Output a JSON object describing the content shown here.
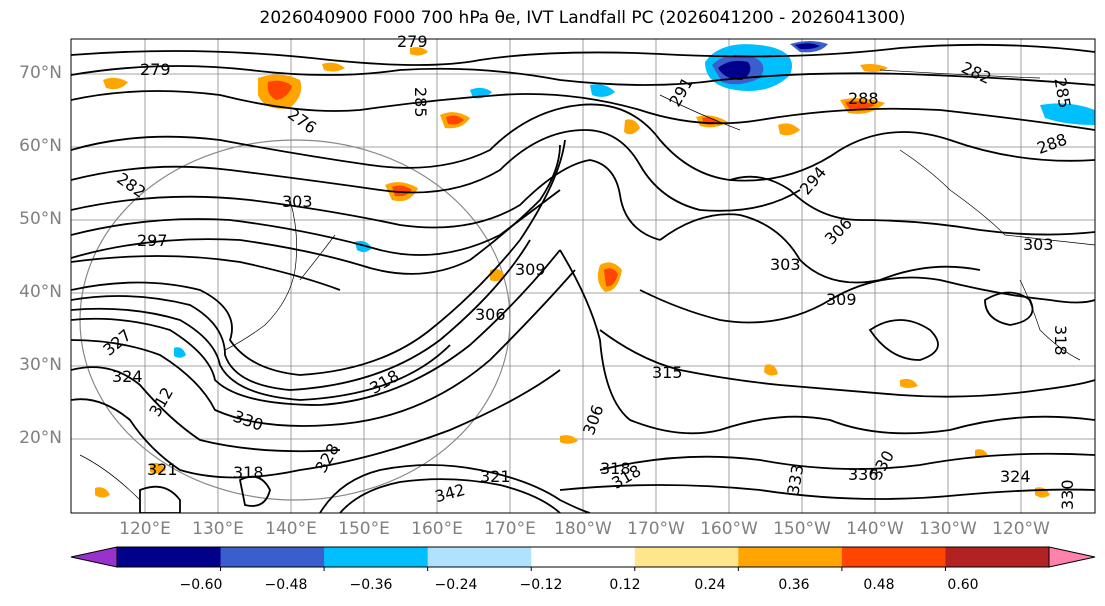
{
  "title": "2026040900 F000 700 hPa θe, IVT Landfall PC (2026041200 - 2026041300)",
  "lat_labels": [
    "70°N",
    "60°N",
    "50°N",
    "40°N",
    "30°N",
    "20°N"
  ],
  "lon_labels": [
    "120°E",
    "130°E",
    "140°E",
    "150°E",
    "160°E",
    "170°E",
    "180°W",
    "170°W",
    "160°W",
    "150°W",
    "140°W",
    "130°W",
    "120°W"
  ],
  "contour_labels": [
    "279",
    "279",
    "276",
    "285",
    "282",
    "297",
    "291",
    "294",
    "288",
    "282",
    "285",
    "288",
    "303",
    "306",
    "303",
    "309",
    "309",
    "306",
    "303",
    "318",
    "327",
    "324",
    "330",
    "318",
    "312",
    "315",
    "318",
    "306",
    "321",
    "318",
    "333",
    "336",
    "321",
    "324",
    "330",
    "328",
    "342",
    "318",
    "330"
  ],
  "colorbar": {
    "ticks": [
      "−0.60",
      "−0.48",
      "−0.36",
      "−0.24",
      "−0.12",
      "0.12",
      "0.24",
      "0.36",
      "0.48",
      "0.60"
    ],
    "colors": [
      "#9932CC",
      "#00008B",
      "#3A5FCD",
      "#00BFFF",
      "#B0E2FF",
      "#FFFFFF",
      "#FFE68C",
      "#FFA500",
      "#FF4500",
      "#B22222",
      "#FF82AB"
    ]
  }
}
